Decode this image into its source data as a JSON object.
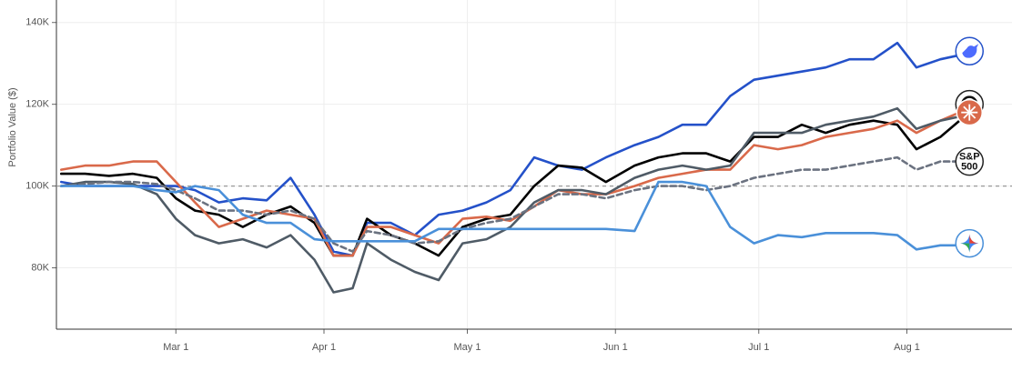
{
  "chart_data": {
    "type": "line",
    "y_label": "Portfolio Value ($)",
    "x": [
      "Feb 5",
      "Feb 10",
      "Feb 15",
      "Feb 20",
      "Feb 25",
      "Mar 1",
      "Mar 5",
      "Mar 10",
      "Mar 15",
      "Mar 20",
      "Mar 25",
      "Mar 30",
      "Apr 3",
      "Apr 7",
      "Apr 10",
      "Apr 15",
      "Apr 20",
      "Apr 25",
      "Apr 30",
      "May 5",
      "May 10",
      "May 15",
      "May 20",
      "May 25",
      "May 30",
      "Jun 5",
      "Jun 10",
      "Jun 15",
      "Jun 20",
      "Jun 25",
      "Jun 30",
      "Jul 5",
      "Jul 10",
      "Jul 15",
      "Jul 20",
      "Jul 25",
      "Jul 30",
      "Aug 3",
      "Aug 8",
      "Aug 12",
      "Aug 16"
    ],
    "xlim": [
      "Feb 4",
      "Aug 23"
    ],
    "xticks": [
      "Mar 1",
      "Apr 1",
      "May 1",
      "Jun 1",
      "Jul 1",
      "Aug 1"
    ],
    "ylim": [
      65000,
      145500
    ],
    "yticks": [
      {
        "value": 80000,
        "label": "80K"
      },
      {
        "value": 100000,
        "label": "100K"
      },
      {
        "value": 120000,
        "label": "120K"
      },
      {
        "value": 140000,
        "label": "140K"
      }
    ],
    "grid": true,
    "baseline": 100000,
    "series": [
      {
        "color": "#2451c9",
        "dash": false,
        "values": [
          101000,
          100000,
          100000,
          100000,
          100000,
          100000,
          99000,
          96000,
          97000,
          96500,
          102000,
          93000,
          84000,
          83000,
          91000,
          91000,
          88000,
          93000,
          94000,
          96000,
          99000,
          107000,
          105000,
          104000,
          107000,
          110000,
          112000,
          115000,
          115000,
          122000,
          126000,
          127000,
          128000,
          129000,
          131000,
          131000,
          135000,
          129000,
          131000,
          132000,
          133000
        ]
      },
      {
        "color": "#000000",
        "dash": false,
        "values": [
          103000,
          103000,
          102500,
          103000,
          102000,
          97000,
          94000,
          93000,
          90000,
          93000,
          95000,
          91000,
          83000,
          83000,
          92000,
          88000,
          86000,
          83000,
          90000,
          92000,
          93000,
          100000,
          105000,
          104500,
          101000,
          105000,
          107000,
          108000,
          108000,
          106000,
          112000,
          112000,
          115000,
          113000,
          115000,
          116000,
          115000,
          109000,
          112000,
          116000,
          120000
        ]
      },
      {
        "color": "#d9694a",
        "dash": false,
        "values": [
          104000,
          105000,
          105000,
          106000,
          106000,
          101000,
          96000,
          90000,
          92000,
          94000,
          93000,
          92000,
          83000,
          83000,
          90000,
          90000,
          88000,
          86000,
          92000,
          92500,
          91500,
          95000,
          99000,
          98000,
          98000,
          100000,
          102000,
          103000,
          104000,
          104000,
          110000,
          109000,
          110000,
          112000,
          113000,
          114000,
          116000,
          113000,
          116000,
          118000,
          118000
        ]
      },
      {
        "color": "#4f5b66",
        "dash": false,
        "values": [
          100000,
          101000,
          101000,
          100500,
          98000,
          92000,
          88000,
          86000,
          87000,
          85000,
          88000,
          82000,
          74000,
          75000,
          86000,
          82000,
          79000,
          77000,
          86000,
          87000,
          90000,
          96000,
          99000,
          99000,
          98000,
          102000,
          104000,
          105000,
          104000,
          105000,
          113000,
          113000,
          113000,
          115000,
          116000,
          117000,
          119000,
          114000,
          116000,
          117000,
          118000
        ]
      },
      {
        "color": "#6b7280",
        "dash": true,
        "end_label": [
          "S&P",
          "500"
        ],
        "values": [
          100000,
          100500,
          101000,
          101000,
          100500,
          99000,
          97000,
          94000,
          94000,
          93000,
          94000,
          92000,
          86000,
          84000,
          89000,
          88000,
          86000,
          86500,
          89500,
          91000,
          92000,
          95000,
          98000,
          98000,
          97000,
          99000,
          100000,
          100000,
          99000,
          100000,
          102000,
          103000,
          104000,
          104000,
          105000,
          106000,
          107000,
          104000,
          106000,
          106000,
          106000
        ]
      },
      {
        "color": "#4a90d9",
        "dash": false,
        "values": [
          100000,
          100000,
          100000,
          100000,
          99000,
          98500,
          100000,
          99000,
          93000,
          91000,
          91000,
          87000,
          86500,
          86500,
          86500,
          86500,
          86500,
          89500,
          89500,
          89500,
          89500,
          89500,
          89500,
          89500,
          89500,
          89000,
          101000,
          101000,
          100000,
          90000,
          86000,
          88000,
          87500,
          88500,
          88500,
          88500,
          88000,
          84500,
          85500,
          85500,
          86000
        ]
      }
    ]
  }
}
